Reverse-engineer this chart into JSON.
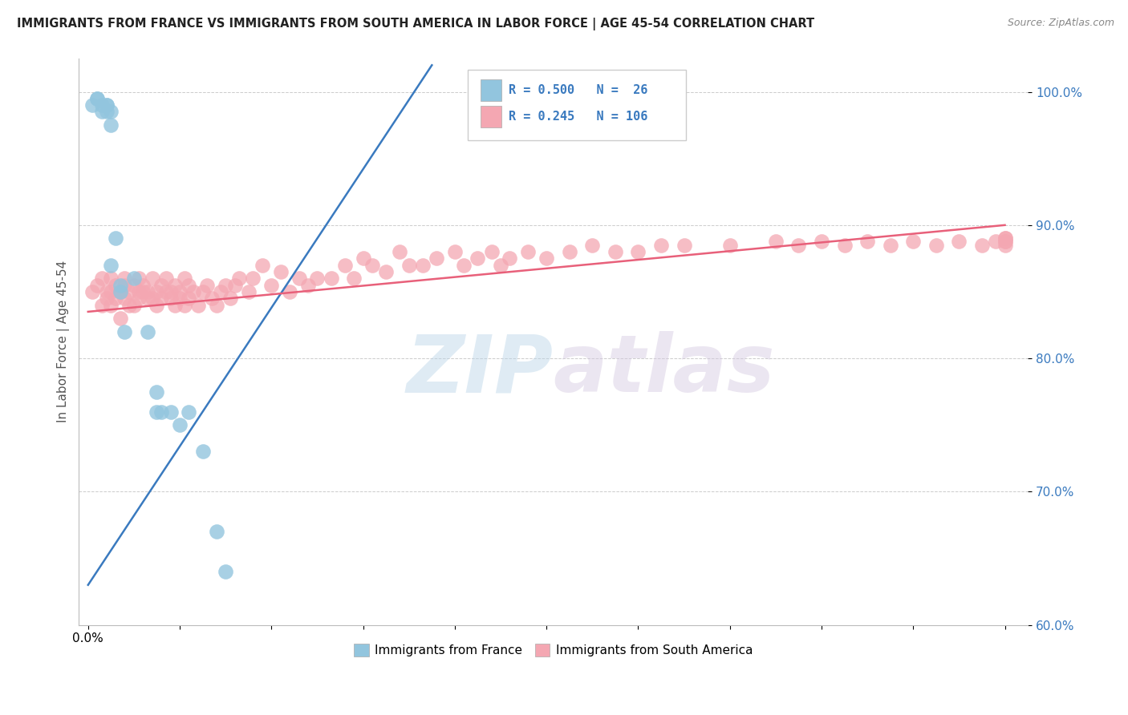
{
  "title": "IMMIGRANTS FROM FRANCE VS IMMIGRANTS FROM SOUTH AMERICA IN LABOR FORCE | AGE 45-54 CORRELATION CHART",
  "source": "Source: ZipAtlas.com",
  "ylabel": "In Labor Force | Age 45-54",
  "watermark": "ZIPatlas",
  "xlim": [
    -0.002,
    0.205
  ],
  "ylim": [
    0.6,
    1.025
  ],
  "yticks": [
    0.6,
    0.7,
    0.8,
    0.9,
    1.0
  ],
  "ytick_labels": [
    "60.0%",
    "70.0%",
    "80.0%",
    "90.0%",
    "100.0%"
  ],
  "xticks": [
    0.0,
    0.02,
    0.04,
    0.06,
    0.08,
    0.1,
    0.12,
    0.14,
    0.16,
    0.18,
    0.2
  ],
  "france_R": 0.5,
  "france_N": 26,
  "south_america_R": 0.245,
  "south_america_N": 106,
  "france_color": "#92c5de",
  "south_america_color": "#f4a7b2",
  "france_line_color": "#3a7abf",
  "south_america_line_color": "#e8607a",
  "legend_label_france": "Immigrants from France",
  "legend_label_south_america": "Immigrants from South America",
  "france_scatter_x": [
    0.001,
    0.002,
    0.002,
    0.003,
    0.003,
    0.004,
    0.004,
    0.004,
    0.005,
    0.005,
    0.005,
    0.006,
    0.007,
    0.007,
    0.008,
    0.01,
    0.013,
    0.015,
    0.015,
    0.016,
    0.018,
    0.02,
    0.022,
    0.025,
    0.028,
    0.03
  ],
  "france_scatter_y": [
    0.99,
    0.995,
    0.995,
    0.99,
    0.985,
    0.99,
    0.99,
    0.985,
    0.985,
    0.975,
    0.87,
    0.89,
    0.85,
    0.855,
    0.82,
    0.86,
    0.82,
    0.76,
    0.775,
    0.76,
    0.76,
    0.75,
    0.76,
    0.73,
    0.67,
    0.64
  ],
  "south_america_scatter_x": [
    0.001,
    0.002,
    0.003,
    0.003,
    0.004,
    0.004,
    0.005,
    0.005,
    0.005,
    0.006,
    0.006,
    0.007,
    0.007,
    0.008,
    0.008,
    0.008,
    0.009,
    0.009,
    0.01,
    0.01,
    0.011,
    0.011,
    0.011,
    0.012,
    0.012,
    0.013,
    0.013,
    0.014,
    0.014,
    0.015,
    0.015,
    0.016,
    0.016,
    0.017,
    0.017,
    0.018,
    0.018,
    0.019,
    0.019,
    0.02,
    0.02,
    0.021,
    0.021,
    0.022,
    0.022,
    0.023,
    0.024,
    0.025,
    0.026,
    0.027,
    0.028,
    0.029,
    0.03,
    0.031,
    0.032,
    0.033,
    0.035,
    0.036,
    0.038,
    0.04,
    0.042,
    0.044,
    0.046,
    0.048,
    0.05,
    0.053,
    0.056,
    0.058,
    0.06,
    0.062,
    0.065,
    0.068,
    0.07,
    0.073,
    0.076,
    0.08,
    0.082,
    0.085,
    0.088,
    0.09,
    0.092,
    0.096,
    0.1,
    0.105,
    0.11,
    0.115,
    0.12,
    0.125,
    0.13,
    0.14,
    0.15,
    0.155,
    0.16,
    0.165,
    0.17,
    0.175,
    0.18,
    0.185,
    0.19,
    0.195,
    0.198,
    0.2,
    0.2,
    0.2,
    0.2,
    0.2
  ],
  "south_america_scatter_y": [
    0.85,
    0.855,
    0.84,
    0.86,
    0.845,
    0.85,
    0.84,
    0.85,
    0.86,
    0.845,
    0.855,
    0.83,
    0.85,
    0.845,
    0.855,
    0.86,
    0.84,
    0.85,
    0.84,
    0.855,
    0.845,
    0.85,
    0.86,
    0.85,
    0.855,
    0.845,
    0.85,
    0.845,
    0.86,
    0.85,
    0.84,
    0.845,
    0.855,
    0.85,
    0.86,
    0.845,
    0.85,
    0.84,
    0.855,
    0.845,
    0.85,
    0.86,
    0.84,
    0.855,
    0.845,
    0.85,
    0.84,
    0.85,
    0.855,
    0.845,
    0.84,
    0.85,
    0.855,
    0.845,
    0.855,
    0.86,
    0.85,
    0.86,
    0.87,
    0.855,
    0.865,
    0.85,
    0.86,
    0.855,
    0.86,
    0.86,
    0.87,
    0.86,
    0.875,
    0.87,
    0.865,
    0.88,
    0.87,
    0.87,
    0.875,
    0.88,
    0.87,
    0.875,
    0.88,
    0.87,
    0.875,
    0.88,
    0.875,
    0.88,
    0.885,
    0.88,
    0.88,
    0.885,
    0.885,
    0.885,
    0.888,
    0.885,
    0.888,
    0.885,
    0.888,
    0.885,
    0.888,
    0.885,
    0.888,
    0.885,
    0.888,
    0.885,
    0.888,
    0.89,
    0.888,
    0.89
  ],
  "france_line_x0": 0.0,
  "france_line_y0": 0.63,
  "france_line_x1": 0.075,
  "france_line_y1": 1.02,
  "south_line_x0": 0.0,
  "south_line_y0": 0.835,
  "south_line_x1": 0.2,
  "south_line_y1": 0.9
}
